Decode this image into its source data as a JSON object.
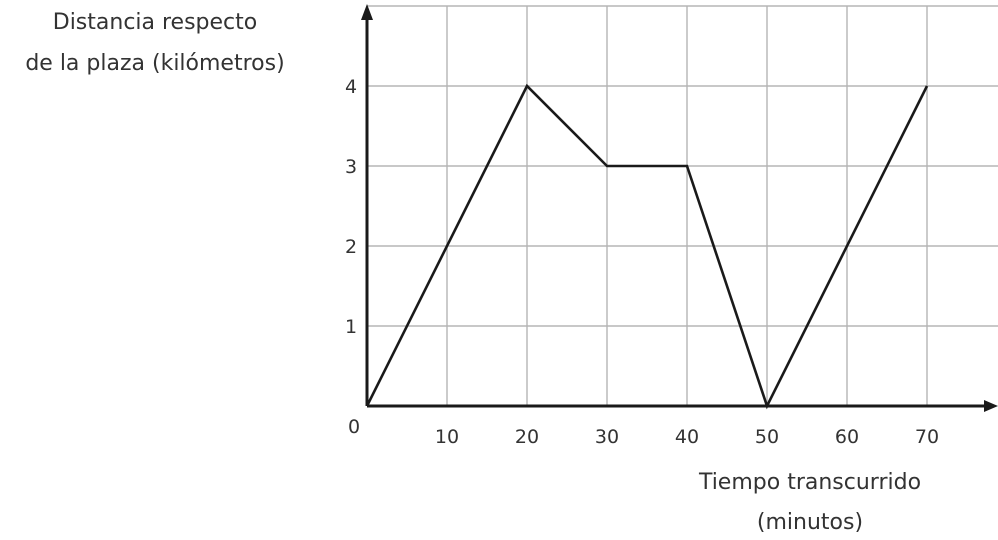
{
  "chart_data": {
    "type": "line",
    "title": "",
    "ylabel_lines": [
      "Distancia respecto",
      "de la plaza (kilómetros)"
    ],
    "xlabel_lines": [
      "Tiempo transcurrido",
      "(minutos)"
    ],
    "x_ticks": [
      "0",
      "10",
      "20",
      "30",
      "40",
      "50",
      "60",
      "70"
    ],
    "y_ticks": [
      "1",
      "2",
      "3",
      "4"
    ],
    "xlim": [
      0,
      80
    ],
    "ylim": [
      0,
      5
    ],
    "grid": true,
    "series": [
      {
        "x": [
          0,
          20,
          30,
          40,
          50,
          70
        ],
        "y": [
          0,
          4,
          3,
          3,
          0,
          4
        ]
      }
    ],
    "colors": {
      "line": "#1a1a1a",
      "grid": "#b5b5b5",
      "axis": "#1a1a1a"
    }
  }
}
